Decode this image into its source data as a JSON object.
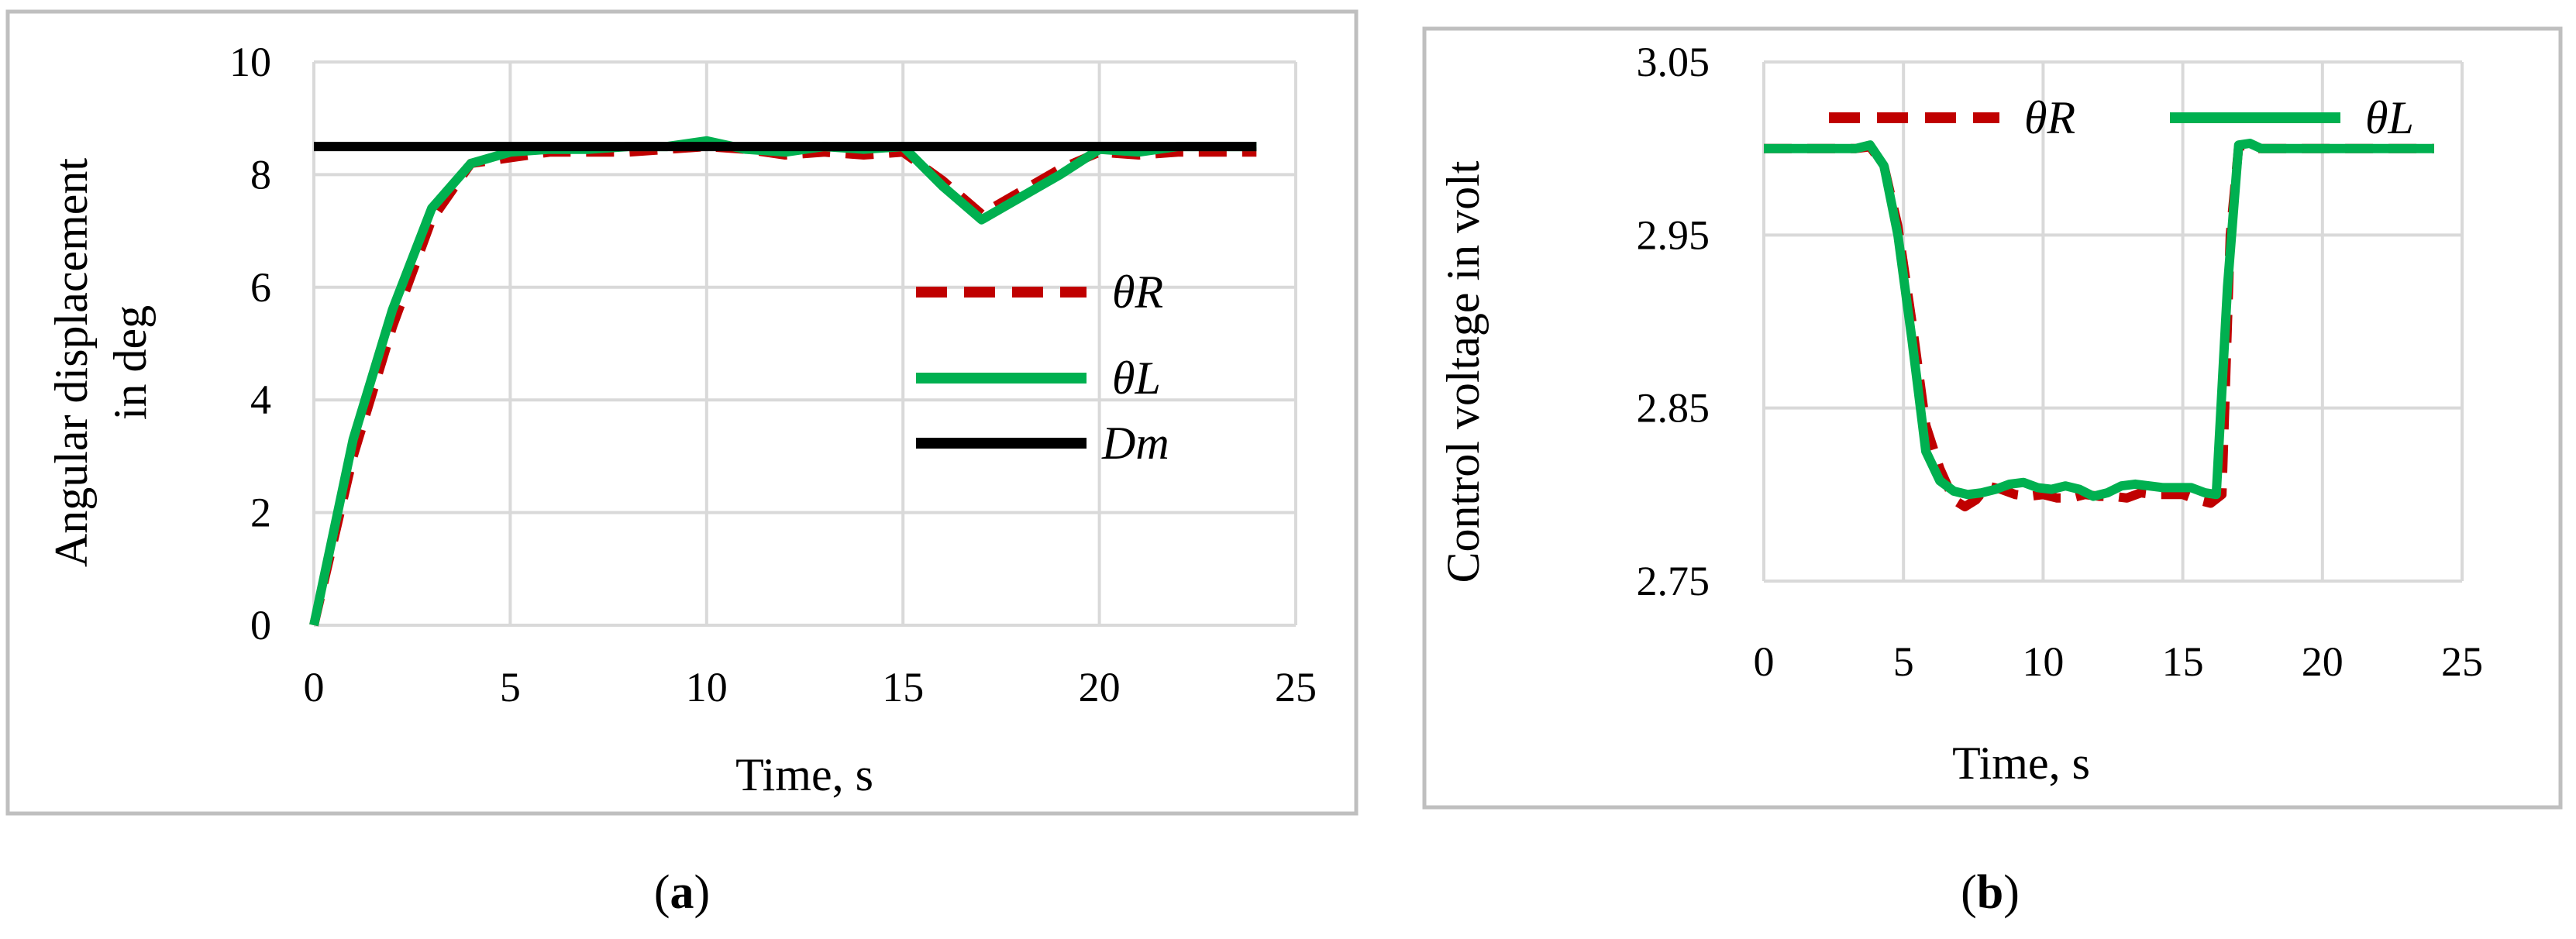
{
  "chart_data": [
    {
      "type": "line",
      "panel_label": "a",
      "xlabel": "Time, s",
      "ylabel_lines": [
        "Angular displacement",
        "in deg"
      ],
      "xlim": [
        0,
        25
      ],
      "ylim": [
        0,
        10
      ],
      "xticks": [
        0,
        5,
        10,
        15,
        20,
        25
      ],
      "yticks": [
        0,
        2,
        4,
        6,
        8,
        10
      ],
      "grid": true,
      "legend_position": "right",
      "series": [
        {
          "name": "θR",
          "style": "dashed",
          "color": "#c00000",
          "points": [
            [
              0,
              0
            ],
            [
              1,
              3.0
            ],
            [
              2,
              5.3
            ],
            [
              3,
              7.2
            ],
            [
              4,
              8.2
            ],
            [
              5,
              8.3
            ],
            [
              6,
              8.4
            ],
            [
              7,
              8.4
            ],
            [
              8,
              8.4
            ],
            [
              9,
              8.45
            ],
            [
              10,
              8.5
            ],
            [
              11,
              8.45
            ],
            [
              12,
              8.35
            ],
            [
              13,
              8.4
            ],
            [
              14,
              8.35
            ],
            [
              15,
              8.4
            ],
            [
              16,
              7.9
            ],
            [
              17,
              7.3
            ],
            [
              18,
              7.7
            ],
            [
              19,
              8.1
            ],
            [
              20,
              8.4
            ],
            [
              21,
              8.35
            ],
            [
              22,
              8.4
            ],
            [
              23,
              8.4
            ],
            [
              24,
              8.4
            ]
          ]
        },
        {
          "name": "θL",
          "style": "solid",
          "color": "#00b050",
          "points": [
            [
              0,
              0
            ],
            [
              1,
              3.3
            ],
            [
              2,
              5.6
            ],
            [
              3,
              7.4
            ],
            [
              4,
              8.2
            ],
            [
              5,
              8.4
            ],
            [
              6,
              8.45
            ],
            [
              7,
              8.45
            ],
            [
              8,
              8.5
            ],
            [
              9,
              8.5
            ],
            [
              10,
              8.6
            ],
            [
              11,
              8.45
            ],
            [
              12,
              8.4
            ],
            [
              13,
              8.5
            ],
            [
              14,
              8.45
            ],
            [
              15,
              8.5
            ],
            [
              16,
              7.8
            ],
            [
              17,
              7.2
            ],
            [
              18,
              7.6
            ],
            [
              19,
              8.0
            ],
            [
              20,
              8.45
            ],
            [
              21,
              8.4
            ],
            [
              22,
              8.5
            ],
            [
              23,
              8.5
            ],
            [
              24,
              8.5
            ]
          ]
        },
        {
          "name": "Dm",
          "style": "solid",
          "color": "#000000",
          "points": [
            [
              0,
              8.5
            ],
            [
              24,
              8.5
            ]
          ]
        }
      ]
    },
    {
      "type": "line",
      "panel_label": "b",
      "xlabel": "Time, s",
      "ylabel": "Control voltage in volt",
      "xlim": [
        0,
        25
      ],
      "ylim": [
        2.75,
        3.05
      ],
      "xticks": [
        0,
        5,
        10,
        15,
        20,
        25
      ],
      "yticks": [
        2.75,
        2.85,
        2.95,
        3.05
      ],
      "grid": true,
      "legend_position": "top",
      "series": [
        {
          "name": "θR",
          "style": "dashed",
          "color": "#c00000",
          "points": [
            [
              0,
              3.0
            ],
            [
              3.3,
              3.0
            ],
            [
              3.8,
              3.001
            ],
            [
              4.3,
              2.99
            ],
            [
              4.8,
              2.955
            ],
            [
              5.3,
              2.9
            ],
            [
              5.8,
              2.84
            ],
            [
              6.3,
              2.815
            ],
            [
              6.8,
              2.797
            ],
            [
              7.2,
              2.793
            ],
            [
              7.6,
              2.797
            ],
            [
              8,
              2.805
            ],
            [
              8.5,
              2.803
            ],
            [
              9,
              2.8
            ],
            [
              9.5,
              2.799
            ],
            [
              10,
              2.8
            ],
            [
              10.5,
              2.798
            ],
            [
              11,
              2.798
            ],
            [
              11.5,
              2.8
            ],
            [
              12,
              2.799
            ],
            [
              12.5,
              2.799
            ],
            [
              13,
              2.798
            ],
            [
              13.5,
              2.801
            ],
            [
              14,
              2.8
            ],
            [
              14.5,
              2.8
            ],
            [
              15,
              2.8
            ],
            [
              15.5,
              2.797
            ],
            [
              16,
              2.795
            ],
            [
              16.4,
              2.8
            ],
            [
              16.7,
              2.95
            ],
            [
              17,
              3.001
            ],
            [
              17.3,
              3.002
            ],
            [
              17.6,
              3.0
            ],
            [
              24,
              3.0
            ]
          ]
        },
        {
          "name": "θL",
          "style": "solid",
          "color": "#00b050",
          "points": [
            [
              0,
              3.0
            ],
            [
              3.3,
              3.0
            ],
            [
              3.8,
              3.002
            ],
            [
              4.3,
              2.99
            ],
            [
              4.8,
              2.95
            ],
            [
              5.3,
              2.89
            ],
            [
              5.8,
              2.825
            ],
            [
              6.3,
              2.808
            ],
            [
              6.8,
              2.802
            ],
            [
              7.3,
              2.8
            ],
            [
              7.8,
              2.801
            ],
            [
              8.3,
              2.803
            ],
            [
              8.8,
              2.806
            ],
            [
              9.3,
              2.807
            ],
            [
              9.8,
              2.804
            ],
            [
              10.3,
              2.803
            ],
            [
              10.8,
              2.805
            ],
            [
              11.3,
              2.803
            ],
            [
              11.8,
              2.799
            ],
            [
              12.3,
              2.801
            ],
            [
              12.8,
              2.805
            ],
            [
              13.3,
              2.806
            ],
            [
              13.8,
              2.805
            ],
            [
              14.3,
              2.804
            ],
            [
              14.8,
              2.804
            ],
            [
              15.3,
              2.804
            ],
            [
              15.8,
              2.801
            ],
            [
              16.2,
              2.8
            ],
            [
              16.6,
              2.92
            ],
            [
              17,
              3.002
            ],
            [
              17.4,
              3.003
            ],
            [
              17.8,
              3.0
            ],
            [
              24,
              3.0
            ]
          ]
        }
      ]
    }
  ]
}
